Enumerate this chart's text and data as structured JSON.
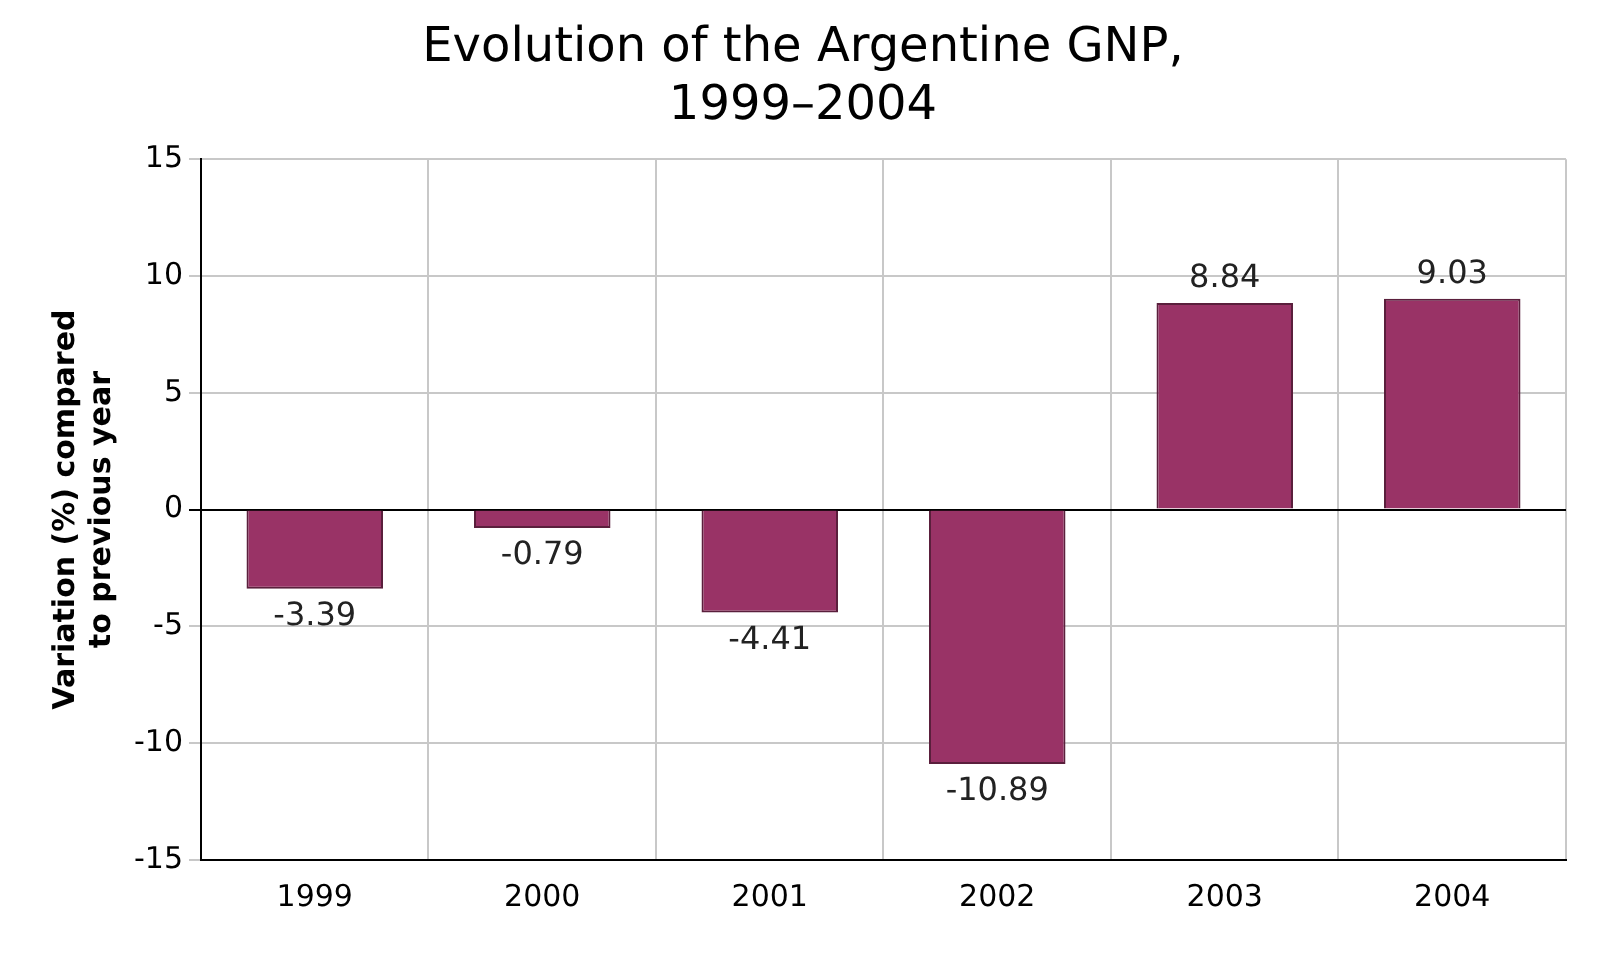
{
  "chart_data": {
    "type": "bar",
    "title": "Evolution of the Argentine GNP,\n1999–2004",
    "ylabel": "Variation (%) compared\nto previous year",
    "categories": [
      "1999",
      "2000",
      "2001",
      "2002",
      "2003",
      "2004"
    ],
    "values": [
      -3.39,
      -0.79,
      -4.41,
      -10.89,
      8.84,
      9.03
    ],
    "color": "#993366",
    "ylim": [
      -15,
      15
    ],
    "yticks": [
      -15,
      -10,
      -5,
      0,
      5,
      10,
      15
    ],
    "grid": true,
    "data_labels": true
  }
}
